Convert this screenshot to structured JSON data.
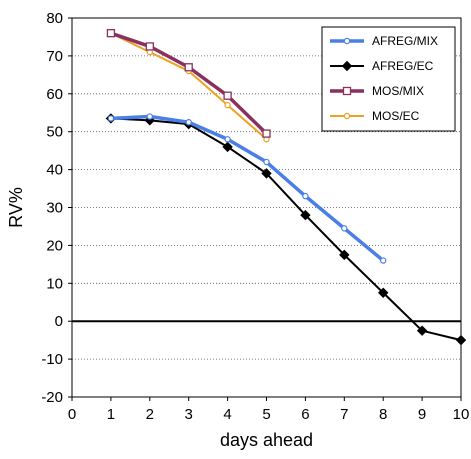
{
  "chart_data": {
    "type": "line",
    "title": "",
    "xlabel": "days ahead",
    "ylabel": "RV%",
    "xlim": [
      0,
      10
    ],
    "ylim": [
      -20,
      80
    ],
    "xticks": [
      0,
      1,
      2,
      3,
      4,
      5,
      6,
      7,
      8,
      9,
      10
    ],
    "yticks": [
      -20,
      -10,
      0,
      10,
      20,
      30,
      40,
      50,
      60,
      70,
      80
    ],
    "grid": "horizontal dotted",
    "zero_line": true,
    "legend_position": "top-right",
    "series": [
      {
        "name": "AFREG/MIX",
        "color": "#4a7fe8",
        "marker": "circle-open",
        "x": [
          1,
          2,
          3,
          4,
          5,
          6,
          7,
          8
        ],
        "y": [
          53.5,
          54,
          52.5,
          48,
          42,
          33,
          24.5,
          16
        ]
      },
      {
        "name": "AFREG/EC",
        "color": "#000000",
        "marker": "diamond-filled",
        "x": [
          1,
          2,
          3,
          4,
          5,
          6,
          7,
          8,
          9,
          10
        ],
        "y": [
          53.5,
          53,
          52,
          46,
          39,
          28,
          17.5,
          7.5,
          -2.5,
          -5
        ]
      },
      {
        "name": "MOS/MIX",
        "color": "#8b2f5f",
        "marker": "square-open",
        "x": [
          1,
          2,
          3,
          4,
          5
        ],
        "y": [
          76,
          72.5,
          67,
          59.5,
          49.5
        ]
      },
      {
        "name": "MOS/EC",
        "color": "#f0a020",
        "marker": "circle-open",
        "x": [
          1,
          2,
          3,
          4,
          5
        ],
        "y": [
          76,
          71,
          66,
          57,
          48
        ]
      }
    ]
  }
}
